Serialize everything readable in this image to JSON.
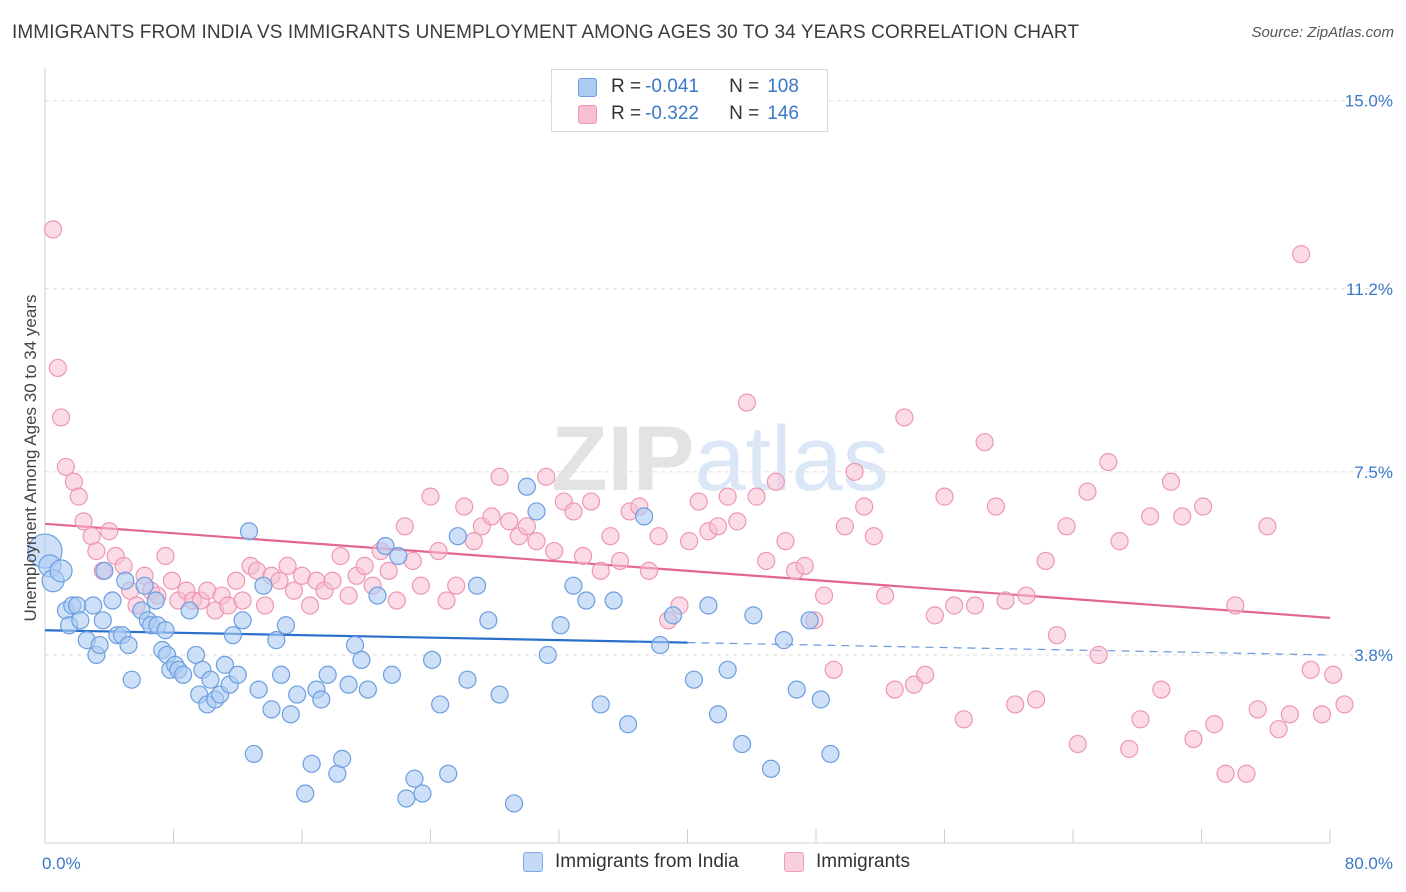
{
  "title": "IMMIGRANTS FROM INDIA VS IMMIGRANTS UNEMPLOYMENT AMONG AGES 30 TO 34 YEARS CORRELATION CHART",
  "source": "Source: ZipAtlas.com",
  "watermark": "ZIPatlas",
  "legend": {
    "rows": [
      {
        "r_label": "R =",
        "r_value": "-0.041",
        "n_label": "N =",
        "n_value": "108"
      },
      {
        "r_label": "R =",
        "r_value": "-0.322",
        "n_label": "N =",
        "n_value": "146"
      }
    ]
  },
  "bottom_legend": [
    "Immigrants from India",
    "Immigrants"
  ],
  "colors": {
    "india_fill": "#aecbf2",
    "india_stroke": "#6c9ee0",
    "india_line": "#2a6fcc",
    "imm_fill": "#f7bfd1",
    "imm_stroke": "#ee96b4",
    "imm_line": "#e26692",
    "axis_text": "#3a78c9",
    "grid": "#dcdcdc"
  },
  "chart_data": {
    "type": "scatter",
    "title": "IMMIGRANTS FROM INDIA VS IMMIGRANTS UNEMPLOYMENT AMONG AGES 30 TO 34 YEARS CORRELATION CHART",
    "xlabel": "",
    "ylabel": "Unemployment Among Ages 30 to 34 years",
    "xlim": [
      0,
      80
    ],
    "ylim": [
      0,
      15.5
    ],
    "x_tick_labels": [
      "0.0%",
      "80.0%"
    ],
    "y_ticks": [
      3.8,
      7.5,
      11.2,
      15.0
    ],
    "y_tick_labels": [
      "3.8%",
      "7.5%",
      "11.2%",
      "15.0%"
    ],
    "legend_position": "top-center",
    "series": [
      {
        "name": "Immigrants from India",
        "R": -0.041,
        "N": 108,
        "trend": {
          "x": [
            0,
            40
          ],
          "y": [
            4.3,
            4.05
          ],
          "dashed_to": [
            80,
            3.8
          ]
        },
        "points": [
          [
            0.0,
            5.9
          ],
          [
            0.3,
            5.6
          ],
          [
            0.5,
            5.3
          ],
          [
            1.0,
            5.5
          ],
          [
            1.3,
            4.7
          ],
          [
            1.5,
            4.4
          ],
          [
            1.7,
            4.8
          ],
          [
            2.0,
            4.8
          ],
          [
            2.2,
            4.5
          ],
          [
            2.6,
            4.1
          ],
          [
            3.0,
            4.8
          ],
          [
            3.2,
            3.8
          ],
          [
            3.4,
            4.0
          ],
          [
            3.6,
            4.5
          ],
          [
            3.7,
            5.5
          ],
          [
            4.2,
            4.9
          ],
          [
            4.5,
            4.2
          ],
          [
            4.8,
            4.2
          ],
          [
            5.0,
            5.3
          ],
          [
            5.2,
            4.0
          ],
          [
            5.4,
            3.3
          ],
          [
            6.0,
            4.7
          ],
          [
            6.2,
            5.2
          ],
          [
            6.4,
            4.5
          ],
          [
            6.6,
            4.4
          ],
          [
            6.9,
            4.9
          ],
          [
            7.0,
            4.4
          ],
          [
            7.3,
            3.9
          ],
          [
            7.5,
            4.3
          ],
          [
            7.6,
            3.8
          ],
          [
            7.8,
            3.5
          ],
          [
            8.1,
            3.6
          ],
          [
            8.3,
            3.5
          ],
          [
            8.6,
            3.4
          ],
          [
            9.0,
            4.7
          ],
          [
            9.4,
            3.8
          ],
          [
            9.6,
            3.0
          ],
          [
            9.8,
            3.5
          ],
          [
            10.1,
            2.8
          ],
          [
            10.3,
            3.3
          ],
          [
            10.6,
            2.9
          ],
          [
            10.9,
            3.0
          ],
          [
            11.2,
            3.6
          ],
          [
            11.5,
            3.2
          ],
          [
            11.7,
            4.2
          ],
          [
            12.0,
            3.4
          ],
          [
            12.3,
            4.5
          ],
          [
            12.7,
            6.3
          ],
          [
            13.0,
            1.8
          ],
          [
            13.3,
            3.1
          ],
          [
            13.6,
            5.2
          ],
          [
            14.1,
            2.7
          ],
          [
            14.4,
            4.1
          ],
          [
            14.7,
            3.4
          ],
          [
            15.0,
            4.4
          ],
          [
            15.3,
            2.6
          ],
          [
            15.7,
            3.0
          ],
          [
            16.2,
            1.0
          ],
          [
            16.6,
            1.6
          ],
          [
            16.9,
            3.1
          ],
          [
            17.2,
            2.9
          ],
          [
            17.6,
            3.4
          ],
          [
            18.2,
            1.4
          ],
          [
            18.5,
            1.7
          ],
          [
            18.9,
            3.2
          ],
          [
            19.3,
            4.0
          ],
          [
            19.7,
            3.7
          ],
          [
            20.1,
            3.1
          ],
          [
            20.7,
            5.0
          ],
          [
            21.2,
            6.0
          ],
          [
            21.6,
            3.4
          ],
          [
            22.0,
            5.8
          ],
          [
            22.5,
            0.9
          ],
          [
            23.0,
            1.3
          ],
          [
            23.5,
            1.0
          ],
          [
            24.1,
            3.7
          ],
          [
            24.6,
            2.8
          ],
          [
            25.1,
            1.4
          ],
          [
            25.7,
            6.2
          ],
          [
            26.3,
            3.3
          ],
          [
            26.9,
            5.2
          ],
          [
            27.6,
            4.5
          ],
          [
            28.3,
            3.0
          ],
          [
            29.2,
            0.8
          ],
          [
            30.0,
            7.2
          ],
          [
            30.6,
            6.7
          ],
          [
            31.3,
            3.8
          ],
          [
            32.1,
            4.4
          ],
          [
            32.9,
            5.2
          ],
          [
            33.7,
            4.9
          ],
          [
            34.6,
            2.8
          ],
          [
            35.4,
            4.9
          ],
          [
            36.3,
            2.4
          ],
          [
            37.3,
            6.6
          ],
          [
            38.3,
            4.0
          ],
          [
            39.1,
            4.6
          ],
          [
            40.4,
            3.3
          ],
          [
            41.3,
            4.8
          ],
          [
            41.9,
            2.6
          ],
          [
            42.5,
            3.5
          ],
          [
            43.4,
            2.0
          ],
          [
            44.1,
            4.6
          ],
          [
            45.2,
            1.5
          ],
          [
            46.0,
            4.1
          ],
          [
            46.8,
            3.1
          ],
          [
            47.6,
            4.5
          ],
          [
            48.3,
            2.9
          ],
          [
            48.9,
            1.8
          ]
        ]
      },
      {
        "name": "Immigrants",
        "R": -0.322,
        "N": 146,
        "trend": {
          "x": [
            0,
            80
          ],
          "y": [
            6.45,
            4.55
          ]
        },
        "points": [
          [
            0.5,
            12.4
          ],
          [
            0.8,
            9.6
          ],
          [
            1.0,
            8.6
          ],
          [
            1.3,
            7.6
          ],
          [
            1.8,
            7.3
          ],
          [
            2.1,
            7.0
          ],
          [
            2.4,
            6.5
          ],
          [
            2.9,
            6.2
          ],
          [
            3.2,
            5.9
          ],
          [
            3.6,
            5.5
          ],
          [
            4.0,
            6.3
          ],
          [
            4.4,
            5.8
          ],
          [
            4.9,
            5.6
          ],
          [
            5.3,
            5.1
          ],
          [
            5.7,
            4.8
          ],
          [
            6.2,
            5.4
          ],
          [
            6.6,
            5.1
          ],
          [
            7.0,
            5.0
          ],
          [
            7.5,
            5.8
          ],
          [
            7.9,
            5.3
          ],
          [
            8.3,
            4.9
          ],
          [
            8.8,
            5.1
          ],
          [
            9.2,
            4.9
          ],
          [
            9.7,
            4.9
          ],
          [
            10.1,
            5.1
          ],
          [
            10.6,
            4.7
          ],
          [
            11.0,
            5.0
          ],
          [
            11.4,
            4.8
          ],
          [
            11.9,
            5.3
          ],
          [
            12.3,
            4.9
          ],
          [
            12.8,
            5.6
          ],
          [
            13.2,
            5.5
          ],
          [
            13.7,
            4.8
          ],
          [
            14.1,
            5.4
          ],
          [
            14.6,
            5.3
          ],
          [
            15.1,
            5.6
          ],
          [
            15.5,
            5.1
          ],
          [
            16.0,
            5.4
          ],
          [
            16.5,
            4.8
          ],
          [
            16.9,
            5.3
          ],
          [
            17.4,
            5.1
          ],
          [
            17.9,
            5.3
          ],
          [
            18.4,
            5.8
          ],
          [
            18.9,
            5.0
          ],
          [
            19.4,
            5.4
          ],
          [
            19.9,
            5.6
          ],
          [
            20.4,
            5.2
          ],
          [
            20.9,
            5.9
          ],
          [
            21.4,
            5.5
          ],
          [
            21.9,
            4.9
          ],
          [
            22.4,
            6.4
          ],
          [
            22.9,
            5.7
          ],
          [
            23.4,
            5.2
          ],
          [
            24.0,
            7.0
          ],
          [
            24.5,
            5.9
          ],
          [
            25.0,
            4.9
          ],
          [
            25.6,
            5.2
          ],
          [
            26.1,
            6.8
          ],
          [
            26.7,
            6.1
          ],
          [
            27.2,
            6.4
          ],
          [
            27.8,
            6.6
          ],
          [
            28.3,
            7.4
          ],
          [
            28.9,
            6.5
          ],
          [
            29.5,
            6.2
          ],
          [
            30.0,
            6.4
          ],
          [
            30.6,
            6.1
          ],
          [
            31.2,
            7.4
          ],
          [
            31.7,
            5.9
          ],
          [
            32.3,
            6.9
          ],
          [
            32.9,
            6.7
          ],
          [
            33.5,
            5.8
          ],
          [
            34.0,
            6.9
          ],
          [
            34.6,
            5.5
          ],
          [
            35.2,
            6.2
          ],
          [
            35.8,
            5.7
          ],
          [
            36.4,
            6.7
          ],
          [
            37.0,
            6.8
          ],
          [
            37.6,
            5.5
          ],
          [
            38.2,
            6.2
          ],
          [
            38.8,
            4.5
          ],
          [
            39.5,
            4.8
          ],
          [
            40.1,
            6.1
          ],
          [
            40.7,
            6.9
          ],
          [
            41.3,
            6.3
          ],
          [
            41.9,
            6.4
          ],
          [
            42.5,
            7.0
          ],
          [
            43.1,
            6.5
          ],
          [
            43.7,
            8.9
          ],
          [
            44.3,
            7.0
          ],
          [
            44.9,
            5.7
          ],
          [
            45.5,
            7.3
          ],
          [
            46.1,
            6.1
          ],
          [
            46.7,
            5.5
          ],
          [
            47.3,
            5.6
          ],
          [
            47.9,
            4.5
          ],
          [
            48.5,
            5.0
          ],
          [
            49.1,
            3.5
          ],
          [
            49.8,
            6.4
          ],
          [
            50.4,
            7.5
          ],
          [
            51.0,
            6.8
          ],
          [
            51.6,
            6.2
          ],
          [
            52.3,
            5.0
          ],
          [
            52.9,
            3.1
          ],
          [
            53.5,
            8.6
          ],
          [
            54.1,
            3.2
          ],
          [
            54.8,
            3.4
          ],
          [
            55.4,
            4.6
          ],
          [
            56.0,
            7.0
          ],
          [
            56.6,
            4.8
          ],
          [
            57.2,
            2.5
          ],
          [
            57.9,
            4.8
          ],
          [
            58.5,
            8.1
          ],
          [
            59.2,
            6.8
          ],
          [
            59.8,
            4.9
          ],
          [
            60.4,
            2.8
          ],
          [
            61.1,
            5.0
          ],
          [
            61.7,
            2.9
          ],
          [
            62.3,
            5.7
          ],
          [
            63.0,
            4.2
          ],
          [
            63.6,
            6.4
          ],
          [
            64.3,
            2.0
          ],
          [
            64.9,
            7.1
          ],
          [
            65.6,
            3.8
          ],
          [
            66.2,
            7.7
          ],
          [
            66.9,
            6.1
          ],
          [
            67.5,
            1.9
          ],
          [
            68.2,
            2.5
          ],
          [
            68.8,
            6.6
          ],
          [
            69.5,
            3.1
          ],
          [
            70.1,
            7.3
          ],
          [
            70.8,
            6.6
          ],
          [
            71.5,
            2.1
          ],
          [
            72.1,
            6.8
          ],
          [
            72.8,
            2.4
          ],
          [
            73.5,
            1.4
          ],
          [
            74.1,
            4.8
          ],
          [
            74.8,
            1.4
          ],
          [
            75.5,
            2.7
          ],
          [
            76.1,
            6.4
          ],
          [
            76.8,
            2.3
          ],
          [
            77.5,
            2.6
          ],
          [
            78.2,
            11.9
          ],
          [
            78.8,
            3.5
          ],
          [
            79.5,
            2.6
          ],
          [
            80.2,
            3.4
          ],
          [
            80.9,
            2.8
          ]
        ]
      }
    ]
  }
}
